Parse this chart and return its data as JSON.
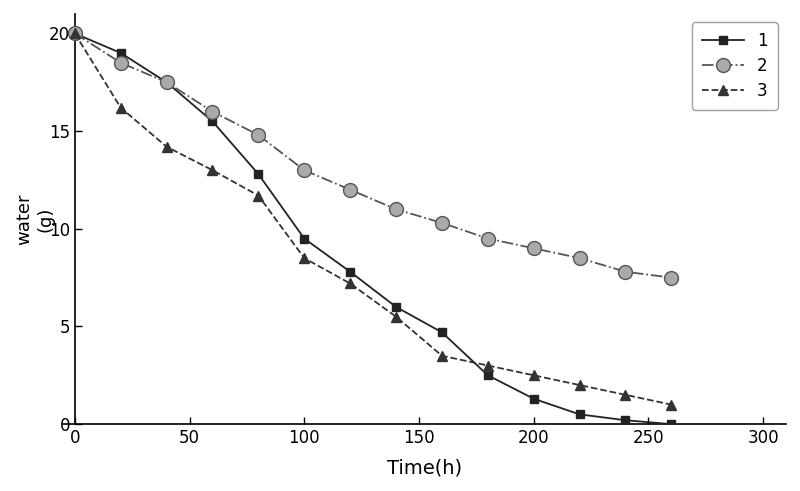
{
  "series": [
    {
      "label": "1",
      "x": [
        0,
        20,
        40,
        60,
        80,
        100,
        120,
        140,
        160,
        180,
        200,
        220,
        240,
        260
      ],
      "y": [
        20,
        19.0,
        17.5,
        15.5,
        12.8,
        9.5,
        7.8,
        6.0,
        4.7,
        2.5,
        1.3,
        0.5,
        0.2,
        0.0
      ],
      "marker": "s",
      "linestyle": "-",
      "color": "#222222",
      "markersize": 6,
      "markerfacecolor": "#222222",
      "linewidth": 1.3
    },
    {
      "label": "2",
      "x": [
        0,
        20,
        40,
        60,
        80,
        100,
        120,
        140,
        160,
        180,
        200,
        220,
        240,
        260
      ],
      "y": [
        20,
        18.5,
        17.5,
        16.0,
        14.8,
        13.0,
        12.0,
        11.0,
        10.3,
        9.5,
        9.0,
        8.5,
        7.8,
        7.5
      ],
      "marker": "o",
      "linestyle": "-.",
      "color": "#555555",
      "markersize": 10,
      "markerfacecolor": "#aaaaaa",
      "linewidth": 1.3
    },
    {
      "label": "3",
      "x": [
        0,
        20,
        40,
        60,
        80,
        100,
        120,
        140,
        160,
        180,
        200,
        220,
        240,
        260
      ],
      "y": [
        20,
        16.2,
        14.2,
        13.0,
        11.7,
        8.5,
        7.2,
        5.5,
        3.5,
        3.0,
        2.5,
        2.0,
        1.5,
        1.0
      ],
      "marker": "^",
      "linestyle": "--",
      "color": "#333333",
      "markersize": 7,
      "markerfacecolor": "#333333",
      "linewidth": 1.3
    }
  ],
  "xlabel": "Time(h)",
  "ylabel": "water\n(g)",
  "xlim": [
    -5,
    310
  ],
  "ylim": [
    0,
    21
  ],
  "xticks": [
    0,
    50,
    100,
    150,
    200,
    250,
    300
  ],
  "yticks": [
    0,
    5,
    10,
    15,
    20
  ],
  "legend_loc": "upper right",
  "background_color": "#ffffff",
  "figsize": [
    8.0,
    4.91
  ],
  "dpi": 100
}
